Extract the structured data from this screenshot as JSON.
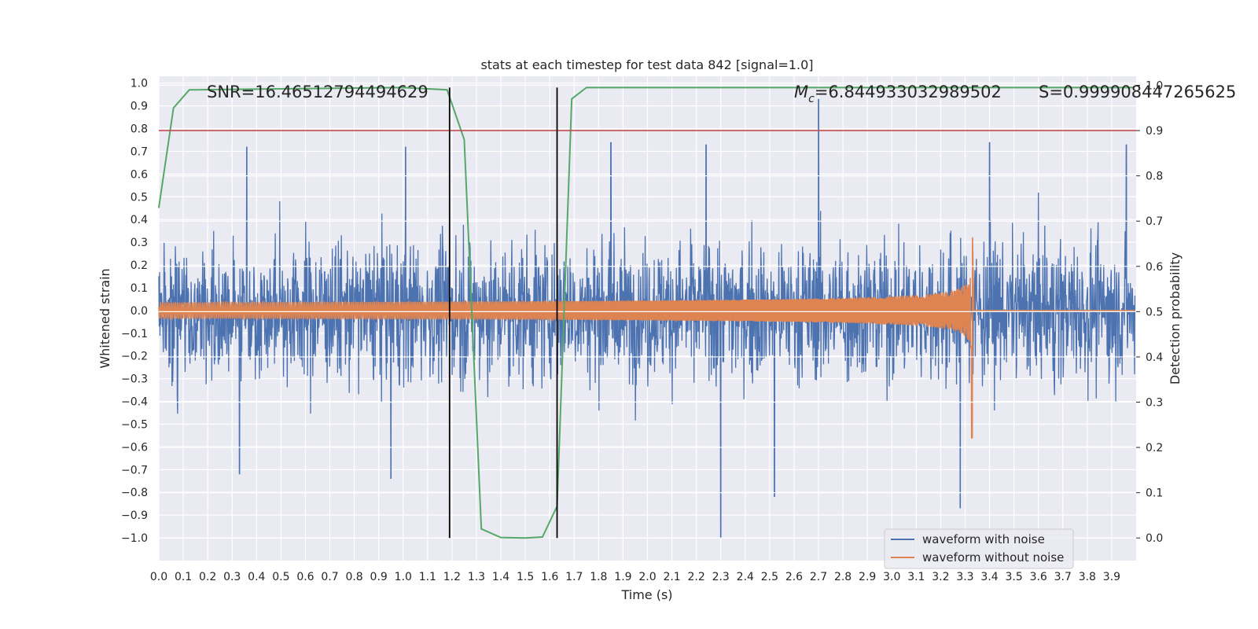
{
  "chart_data": {
    "type": "line",
    "title": "stats at each timestep for test data 842 [signal=1.0]",
    "xlabel": "Time (s)",
    "ylabel": "Whitened strain",
    "y2label": "Detection probability",
    "xlim": [
      0.0,
      4.0
    ],
    "ylim": [
      -1.1,
      1.03
    ],
    "y2lim": [
      -0.05,
      1.02
    ],
    "x_ticks": [
      "0.0",
      "0.1",
      "0.2",
      "0.3",
      "0.4",
      "0.5",
      "0.6",
      "0.7",
      "0.8",
      "0.9",
      "1.0",
      "1.1",
      "1.2",
      "1.3",
      "1.4",
      "1.5",
      "1.6",
      "1.7",
      "1.8",
      "1.9",
      "2.0",
      "2.1",
      "2.2",
      "2.3",
      "2.4",
      "2.5",
      "2.6",
      "2.7",
      "2.8",
      "2.9",
      "3.0",
      "3.1",
      "3.2",
      "3.3",
      "3.4",
      "3.5",
      "3.6",
      "3.7",
      "3.8",
      "3.9"
    ],
    "y_ticks": [
      "1.0",
      "0.9",
      "0.8",
      "0.7",
      "0.6",
      "0.5",
      "0.4",
      "0.3",
      "0.2",
      "0.1",
      "0.0",
      "−0.1",
      "−0.2",
      "−0.3",
      "−0.4",
      "−0.5",
      "−0.6",
      "−0.7",
      "−0.8",
      "−0.9",
      "−1.0"
    ],
    "y2_ticks": [
      "1.0",
      "0.9",
      "0.8",
      "0.7",
      "0.6",
      "0.5",
      "0.4",
      "0.3",
      "0.2",
      "0.1",
      "0.0"
    ],
    "grid": true,
    "legend_placement": "lower-right",
    "annotations": {
      "snr": "SNR=16.46512794494629",
      "mc_symbol": "M",
      "mc_sub": "c",
      "mc_value": "=6.844933032989502",
      "s_stat": "S=0.999908447265625"
    },
    "series": [
      {
        "name": "waveform with noise",
        "axis": "left",
        "color": "#4c72b0",
        "kind": "noise",
        "amplitude_envelope": 0.3,
        "peak_excursions": [
          {
            "x": 0.36,
            "y": 0.72
          },
          {
            "x": 1.01,
            "y": 0.72
          },
          {
            "x": 1.85,
            "y": 0.74
          },
          {
            "x": 2.24,
            "y": 0.73
          },
          {
            "x": 2.7,
            "y": 0.93
          },
          {
            "x": 2.3,
            "y": -1.0
          },
          {
            "x": 3.28,
            "y": -0.87
          },
          {
            "x": 0.33,
            "y": -0.72
          },
          {
            "x": 0.95,
            "y": -0.74
          },
          {
            "x": 2.52,
            "y": -0.82
          },
          {
            "x": 3.4,
            "y": 0.74
          },
          {
            "x": 3.96,
            "y": 0.73
          }
        ]
      },
      {
        "name": "waveform without noise",
        "axis": "left",
        "color": "#dd8452",
        "kind": "chirp",
        "merger_time": 3.33,
        "start_amplitude": 0.035,
        "peak_amplitude": [
          0.34,
          -0.56
        ]
      },
      {
        "name": "detection probability",
        "axis": "right",
        "color": "#55a868",
        "x": [
          0.0,
          0.06,
          0.125,
          1.0,
          1.18,
          1.25,
          1.32,
          1.4,
          1.5,
          1.57,
          1.63,
          1.69,
          1.75,
          3.99
        ],
        "y": [
          0.73,
          0.95,
          0.99,
          0.995,
          0.99,
          0.88,
          0.02,
          0.001,
          0.0,
          0.002,
          0.07,
          0.97,
          0.995,
          0.995
        ]
      }
    ],
    "reference_lines": [
      {
        "orientation": "horizontal",
        "axis": "right",
        "value": 0.9,
        "color": "#c44e52"
      },
      {
        "orientation": "vertical",
        "value": 1.19,
        "color": "#000000"
      },
      {
        "orientation": "vertical",
        "value": 1.63,
        "color": "#000000"
      }
    ]
  }
}
